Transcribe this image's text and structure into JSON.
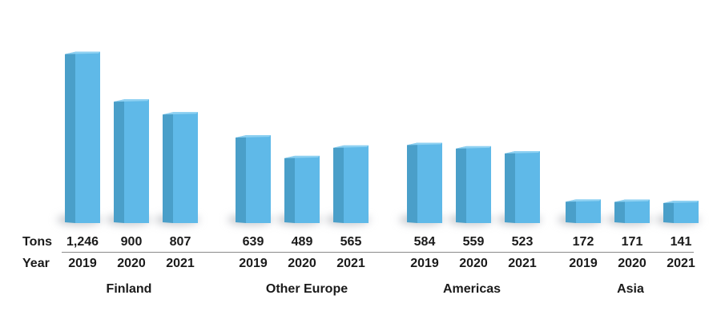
{
  "chart_data": {
    "type": "bar",
    "row_labels": {
      "values": "Tons",
      "years": "Year"
    },
    "groups": [
      {
        "name": "Finland",
        "bars": [
          {
            "year": "2019",
            "value": 1246,
            "label": "1,246"
          },
          {
            "year": "2020",
            "value": 900,
            "label": "900"
          },
          {
            "year": "2021",
            "value": 807,
            "label": "807"
          }
        ]
      },
      {
        "name": "Other Europe",
        "bars": [
          {
            "year": "2019",
            "value": 639,
            "label": "639"
          },
          {
            "year": "2020",
            "value": 489,
            "label": "489"
          },
          {
            "year": "2021",
            "value": 565,
            "label": "565"
          }
        ]
      },
      {
        "name": "Americas",
        "bars": [
          {
            "year": "2019",
            "value": 584,
            "label": "584"
          },
          {
            "year": "2020",
            "value": 559,
            "label": "559"
          },
          {
            "year": "2021",
            "value": 523,
            "label": "523"
          }
        ]
      },
      {
        "name": "Asia",
        "bars": [
          {
            "year": "2019",
            "value": 172,
            "label": "172"
          },
          {
            "year": "2020",
            "value": 171,
            "label": "171"
          },
          {
            "year": "2021",
            "value": 141,
            "label": "141"
          }
        ]
      }
    ],
    "colors": {
      "bar_front": "#5fb9e8",
      "bar_side": "#4a9fc9",
      "bar_top": "#8ed1f2",
      "shadow": "#c9ccd0"
    }
  }
}
